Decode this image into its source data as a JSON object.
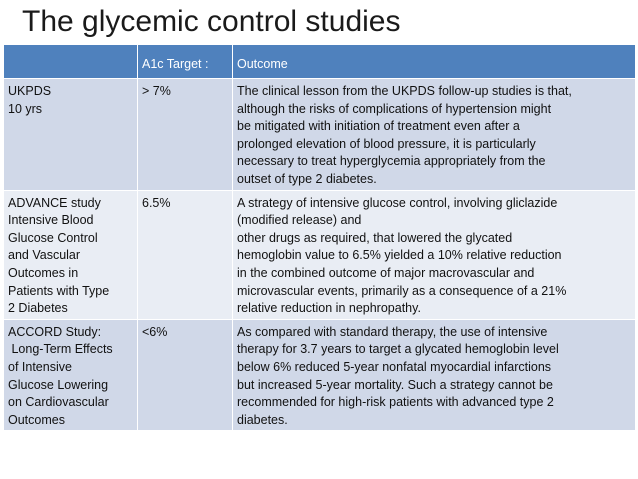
{
  "title": "The glycemic control studies",
  "table": {
    "headers": [
      "",
      "A1c Target :",
      "Outcome"
    ],
    "rows": [
      {
        "study": "UKPDS\n10 yrs",
        "target": "> 7%",
        "outcome": "The clinical lesson from the UKPDS follow-up studies is that,\nalthough the risks of complications of hypertension might\nbe mitigated with initiation of treatment even after a\nprolonged elevation of blood pressure, it is particularly\nnecessary to treat hyperglycemia appropriately from the\noutset of type 2 diabetes."
      },
      {
        "study": "ADVANCE study\nIntensive Blood\nGlucose Control\nand Vascular\nOutcomes in\nPatients with Type\n2 Diabetes",
        "target": "6.5%",
        "outcome": "A strategy of intensive glucose control, involving gliclazide\n(modified release) and\nother drugs as required, that lowered the glycated\nhemoglobin value to 6.5% yielded a 10% relative reduction\nin the combined outcome of major macrovascular and\nmicrovascular events, primarily as a consequence of a 21%\nrelative reduction in nephropathy."
      },
      {
        "study": "ACCORD Study:\n Long-Term Effects\nof Intensive\nGlucose Lowering\non Cardiovascular\nOutcomes",
        "target": "<6%",
        "outcome": "As compared with standard therapy, the use of intensive\ntherapy for 3.7 years to target a glycated hemoglobin level\nbelow 6% reduced 5-year nonfatal myocardial infarctions\nbut increased 5-year mortality. Such a strategy cannot be\nrecommended for high-risk patients with advanced type 2\ndiabetes."
      }
    ]
  },
  "colors": {
    "header_bg": "#4f81bd",
    "row_dark": "#d0d8e8",
    "row_light": "#e9edf4"
  }
}
